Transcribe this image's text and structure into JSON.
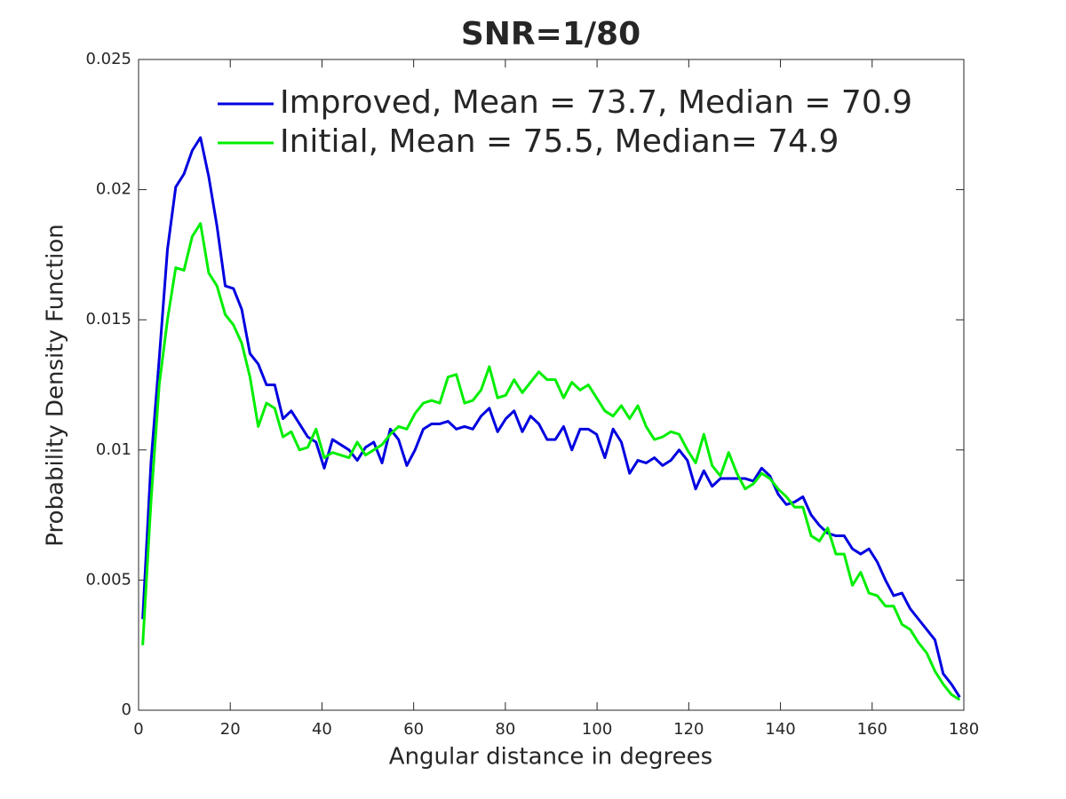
{
  "chart_data": {
    "type": "line",
    "title": "SNR=1/80",
    "xlabel": "Angular distance in degrees",
    "ylabel": "Probability Density Function",
    "x": [
      0.9,
      2.7,
      4.5,
      6.3,
      8.1,
      9.9,
      11.7,
      13.5,
      15.3,
      17.1,
      18.9,
      20.7,
      22.5,
      24.3,
      26.1,
      27.9,
      29.7,
      31.5,
      33.3,
      35.1,
      36.9,
      38.7,
      40.5,
      42.3,
      44.1,
      45.9,
      47.7,
      49.5,
      51.3,
      53.1,
      54.9,
      56.7,
      58.5,
      60.3,
      62.1,
      63.9,
      65.7,
      67.5,
      69.3,
      71.1,
      72.9,
      74.7,
      76.5,
      78.3,
      80.1,
      81.9,
      83.7,
      85.5,
      87.3,
      89.1,
      90.9,
      92.7,
      94.5,
      96.3,
      98.1,
      99.9,
      101.7,
      103.5,
      105.3,
      107.1,
      108.9,
      110.7,
      112.5,
      114.3,
      116.1,
      117.9,
      119.7,
      121.5,
      123.3,
      125.1,
      126.9,
      128.7,
      130.5,
      132.3,
      134.1,
      135.9,
      137.7,
      139.5,
      141.3,
      143.1,
      144.9,
      146.7,
      148.5,
      150.3,
      152.1,
      153.9,
      155.7,
      157.5,
      159.3,
      161.1,
      162.9,
      164.7,
      166.5,
      168.3,
      170.1,
      171.9,
      173.7,
      175.5,
      177.3,
      179.1
    ],
    "series": [
      {
        "name": "Improved, Mean = 73.7, Median = 70.9",
        "color": "#0000e0",
        "values": [
          0.0035,
          0.0095,
          0.0135,
          0.0177,
          0.0201,
          0.0206,
          0.0215,
          0.022,
          0.0205,
          0.0186,
          0.0163,
          0.0162,
          0.0154,
          0.0137,
          0.0133,
          0.0125,
          0.0125,
          0.0112,
          0.0115,
          0.011,
          0.0105,
          0.0103,
          0.0093,
          0.0104,
          0.0102,
          0.01,
          0.0096,
          0.0101,
          0.0103,
          0.0095,
          0.0108,
          0.0104,
          0.0094,
          0.01,
          0.0108,
          0.011,
          0.011,
          0.0111,
          0.0108,
          0.0109,
          0.0108,
          0.0113,
          0.0116,
          0.0107,
          0.0112,
          0.0115,
          0.0107,
          0.0113,
          0.011,
          0.0104,
          0.0104,
          0.0109,
          0.01,
          0.0108,
          0.0108,
          0.0106,
          0.0097,
          0.0108,
          0.0103,
          0.0091,
          0.0096,
          0.0095,
          0.0097,
          0.0094,
          0.0096,
          0.01,
          0.0096,
          0.0085,
          0.0092,
          0.0086,
          0.0089,
          0.0089,
          0.0089,
          0.0089,
          0.0088,
          0.0093,
          0.009,
          0.0083,
          0.0079,
          0.008,
          0.0082,
          0.0075,
          0.0071,
          0.0068,
          0.0067,
          0.0067,
          0.0062,
          0.006,
          0.0062,
          0.0057,
          0.005,
          0.0044,
          0.0045,
          0.0039,
          0.0035,
          0.0031,
          0.0027,
          0.0014,
          0.001,
          0.0005
        ]
      },
      {
        "name": "Initial, Mean = 75.5, Median= 74.9",
        "color": "#00ee00",
        "values": [
          0.0025,
          0.008,
          0.0125,
          0.015,
          0.017,
          0.0169,
          0.0182,
          0.0187,
          0.0168,
          0.0163,
          0.0152,
          0.0148,
          0.0141,
          0.0128,
          0.0109,
          0.0118,
          0.0116,
          0.0105,
          0.0107,
          0.01,
          0.0101,
          0.0108,
          0.0097,
          0.0099,
          0.0098,
          0.0097,
          0.0103,
          0.0098,
          0.01,
          0.0102,
          0.0106,
          0.0109,
          0.0108,
          0.0114,
          0.0118,
          0.0119,
          0.0118,
          0.0128,
          0.0129,
          0.0118,
          0.0119,
          0.0123,
          0.0132,
          0.012,
          0.0121,
          0.0127,
          0.0122,
          0.0126,
          0.013,
          0.0127,
          0.0127,
          0.012,
          0.0126,
          0.0123,
          0.0125,
          0.012,
          0.0115,
          0.0113,
          0.0117,
          0.0112,
          0.0117,
          0.0109,
          0.0104,
          0.0105,
          0.0107,
          0.0106,
          0.01,
          0.0095,
          0.0106,
          0.0094,
          0.009,
          0.0099,
          0.0091,
          0.0085,
          0.0087,
          0.0091,
          0.0089,
          0.0085,
          0.0082,
          0.0078,
          0.0078,
          0.0067,
          0.0065,
          0.007,
          0.006,
          0.006,
          0.0048,
          0.0053,
          0.0045,
          0.0044,
          0.004,
          0.004,
          0.0033,
          0.0031,
          0.0026,
          0.0022,
          0.0015,
          0.001,
          0.0006,
          0.0004
        ]
      }
    ],
    "xlim": [
      0,
      180
    ],
    "xticks": [
      0,
      20,
      40,
      60,
      80,
      100,
      120,
      140,
      160,
      180
    ],
    "ylim": [
      0,
      0.025
    ],
    "yticks": [
      0,
      0.005,
      0.01,
      0.015,
      0.02,
      0.025
    ],
    "grid": false,
    "legend": "top"
  }
}
